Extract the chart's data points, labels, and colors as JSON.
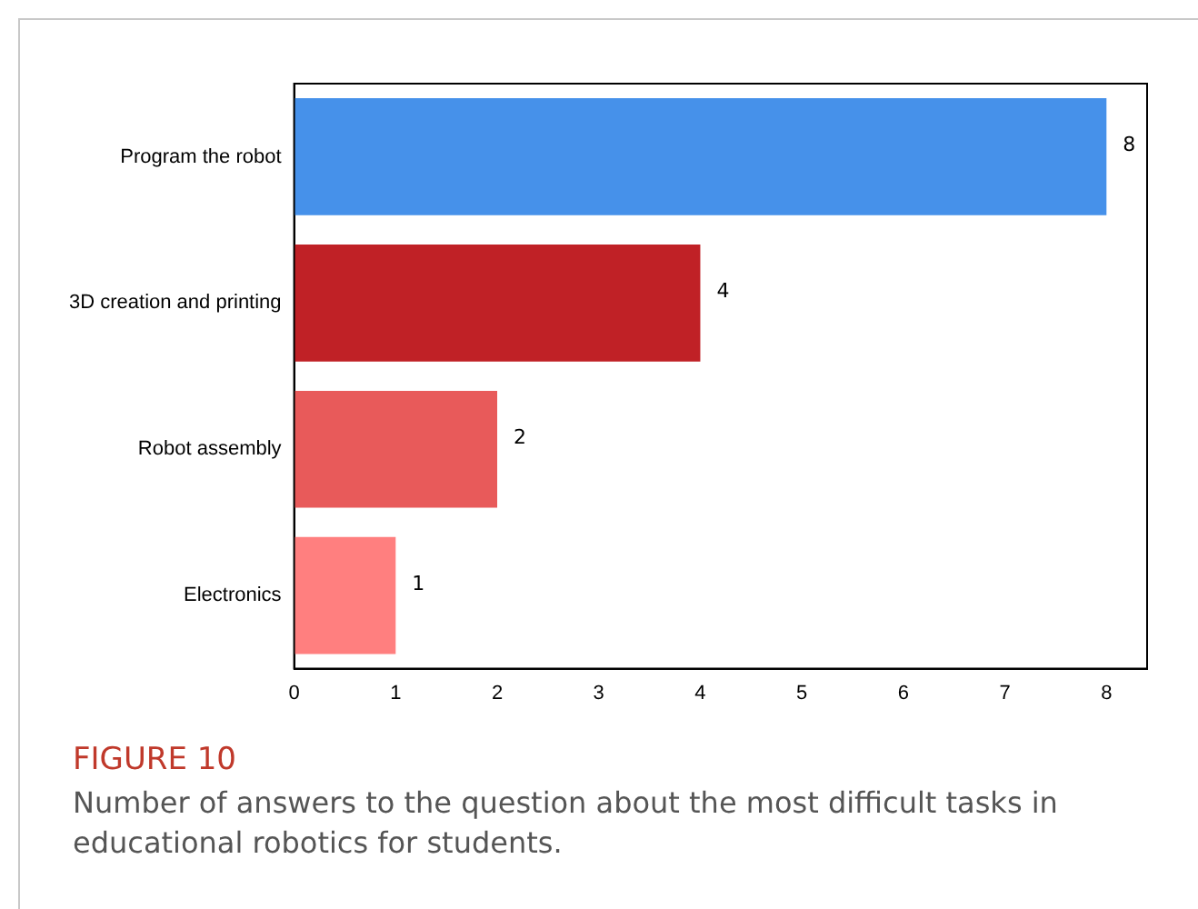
{
  "chart_data": {
    "type": "bar",
    "orientation": "horizontal",
    "title": "FIGURE 10",
    "subtitle": "Number of answers to the question about the most difficult tasks in educational robotics for students.",
    "categories": [
      "Program the robot",
      "3D creation and printing",
      "Robot assembly",
      "Electronics"
    ],
    "values": [
      8,
      4,
      2,
      1
    ],
    "colors": [
      "#4691ea",
      "#c02126",
      "#e85a5a",
      "#ff7f7f"
    ],
    "xlim": [
      0,
      8.4
    ],
    "xticks": [
      0,
      1,
      2,
      3,
      4,
      5,
      6,
      7,
      8
    ],
    "data_labels": true,
    "grid": false,
    "legend": false
  }
}
